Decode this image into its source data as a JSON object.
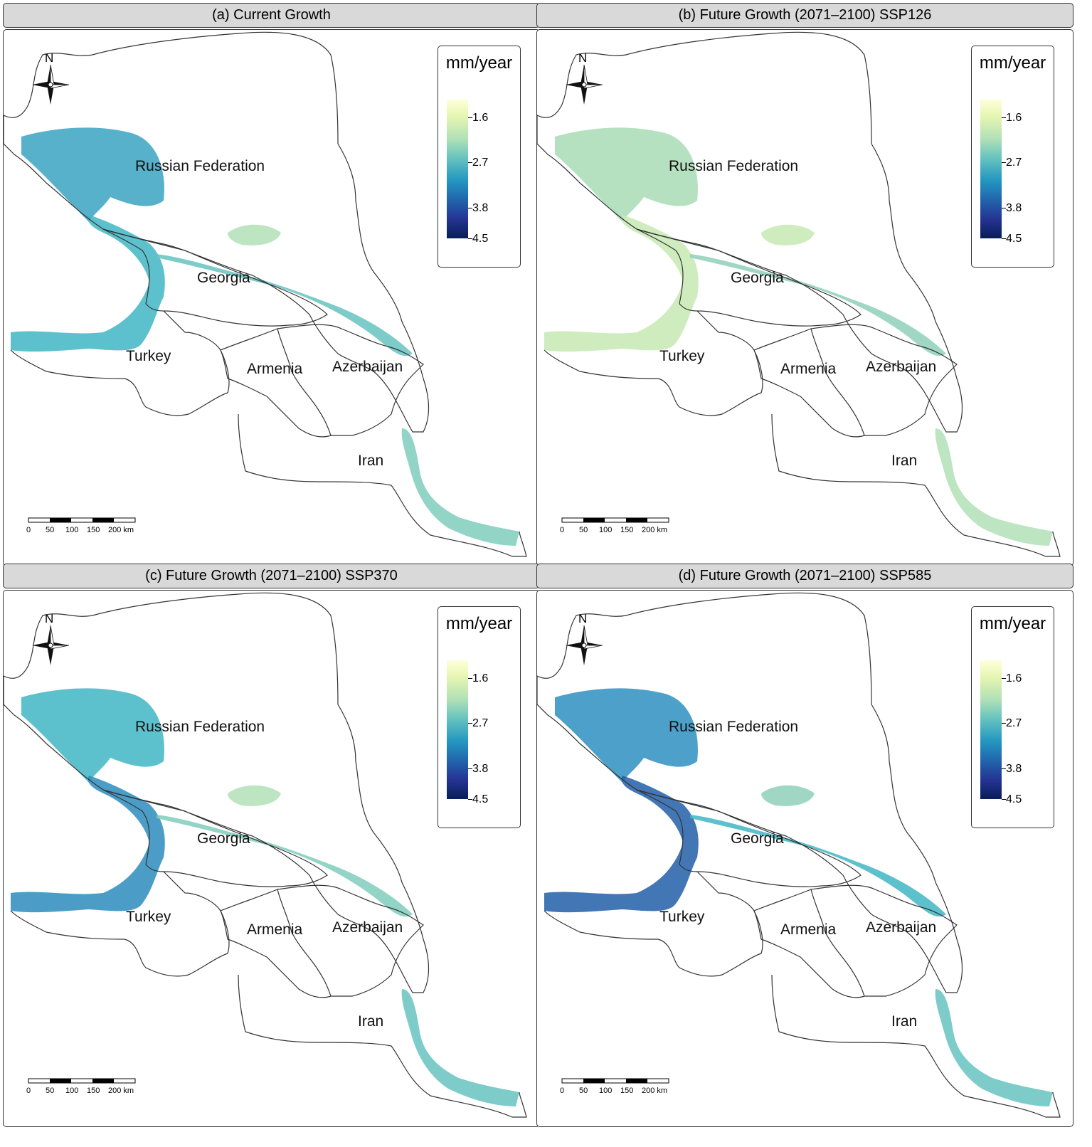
{
  "panels": [
    {
      "title": "(a) Current Growth"
    },
    {
      "title": "(b) Future Growth (2071–2100) SSP126"
    },
    {
      "title": "(c) Future Growth (2071–2100) SSP370"
    },
    {
      "title": "(d) Future Growth (2071–2100) SSP585"
    }
  ],
  "legend": {
    "title": "mm/year",
    "ticks": [
      "1.6",
      "2.7",
      "3.8",
      "4.5"
    ],
    "colors": [
      "#ffffd9",
      "#b2e1b6",
      "#41b6c4",
      "#225ea8",
      "#081d58"
    ]
  },
  "labels": {
    "russia": "Russian Federation",
    "georgia": "Georgia",
    "turkey": "Turkey",
    "armenia": "Armenia",
    "azerbaijan": "Azerbaijan",
    "iran": "Iran"
  },
  "north_arrow": {
    "label": "N"
  },
  "scale_bar": {
    "labels": [
      "0",
      "50",
      "100",
      "150",
      "200 km"
    ]
  }
}
